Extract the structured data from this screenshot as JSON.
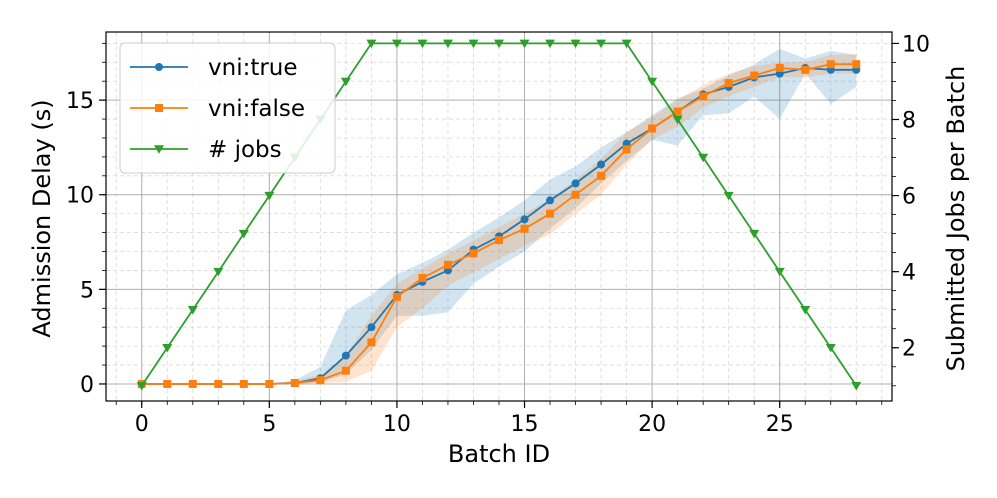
{
  "chart_data": {
    "type": "line",
    "x_label": "Batch ID",
    "y_label_left": "Admission Delay (s)",
    "y_label_right": "Submitted Jobs per Batch",
    "x_ticks": [
      "0",
      "5",
      "10",
      "15",
      "20",
      "25"
    ],
    "y_left_ticks": [
      "0",
      "5",
      "10",
      "15"
    ],
    "y_right_ticks": [
      "2",
      "4",
      "6",
      "8",
      "10"
    ],
    "x_range": [
      -1.4,
      29.4
    ],
    "y_left_range": [
      -0.9,
      18.6
    ],
    "y_right_range": [
      0.6,
      10.3
    ],
    "grid": true,
    "legend_position": "top-left",
    "x": [
      0,
      1,
      2,
      3,
      4,
      5,
      6,
      7,
      8,
      9,
      10,
      11,
      12,
      13,
      14,
      15,
      16,
      17,
      18,
      19,
      20,
      21,
      22,
      23,
      24,
      25,
      26,
      27,
      28
    ],
    "series": [
      {
        "name": "vni:true",
        "axis": "left",
        "color": "#1f77b4",
        "marker": "circle",
        "values": [
          0,
          0,
          0,
          0,
          0,
          0,
          0.05,
          0.3,
          1.5,
          3.0,
          4.7,
          5.4,
          6.0,
          7.1,
          7.8,
          8.7,
          9.7,
          10.6,
          11.6,
          12.7,
          13.5,
          14.4,
          15.3,
          15.7,
          16.2,
          16.4,
          16.7,
          16.6,
          16.6
        ],
        "band_lower": [
          0,
          0,
          0,
          0,
          0,
          0,
          0,
          0.1,
          0.5,
          1.8,
          3.6,
          3.6,
          3.8,
          5.3,
          6.2,
          7.0,
          8.2,
          9.3,
          10.6,
          11.8,
          12.9,
          12.6,
          14.2,
          14.3,
          15.2,
          14.0,
          16.4,
          14.8,
          15.7
        ],
        "band_upper": [
          0,
          0,
          0,
          0,
          0,
          0,
          0.2,
          0.9,
          3.9,
          4.7,
          5.8,
          6.4,
          7.1,
          8.0,
          8.8,
          9.7,
          10.8,
          11.5,
          12.5,
          13.3,
          14.2,
          15.1,
          15.6,
          16.3,
          16.9,
          17.7,
          17.2,
          17.6,
          17.4
        ]
      },
      {
        "name": "vni:false",
        "axis": "left",
        "color": "#ff7f0e",
        "marker": "square",
        "values": [
          0,
          0,
          0,
          0,
          0,
          0,
          0.05,
          0.2,
          0.7,
          2.2,
          4.6,
          5.6,
          6.3,
          6.9,
          7.6,
          8.2,
          9.0,
          10.0,
          11.0,
          12.4,
          13.5,
          14.4,
          15.2,
          15.9,
          16.3,
          16.7,
          16.6,
          16.9,
          16.9
        ],
        "band_lower": [
          0,
          0,
          0,
          0,
          0,
          0,
          0,
          0.05,
          0.1,
          0.7,
          3.0,
          4.0,
          5.2,
          5.9,
          6.6,
          7.3,
          7.9,
          9.0,
          10.0,
          11.6,
          12.9,
          13.6,
          14.6,
          15.2,
          15.7,
          16.2,
          16.2,
          16.4,
          16.4
        ],
        "band_upper": [
          0,
          0,
          0,
          0,
          0,
          0,
          0.15,
          0.5,
          1.5,
          3.6,
          5.3,
          6.1,
          6.9,
          7.6,
          8.3,
          9.0,
          9.8,
          10.8,
          11.9,
          13.3,
          14.1,
          15.0,
          15.8,
          16.4,
          16.8,
          17.0,
          17.0,
          17.4,
          17.4
        ]
      },
      {
        "name": "# jobs",
        "axis": "right",
        "color": "#2ca02c",
        "marker": "triangle-down",
        "values": [
          1,
          2,
          3,
          4,
          5,
          6,
          7,
          8,
          9,
          10,
          10,
          10,
          10,
          10,
          10,
          10,
          10,
          10,
          10,
          10,
          9,
          8,
          7,
          6,
          5,
          4,
          3,
          2,
          1
        ]
      }
    ]
  }
}
